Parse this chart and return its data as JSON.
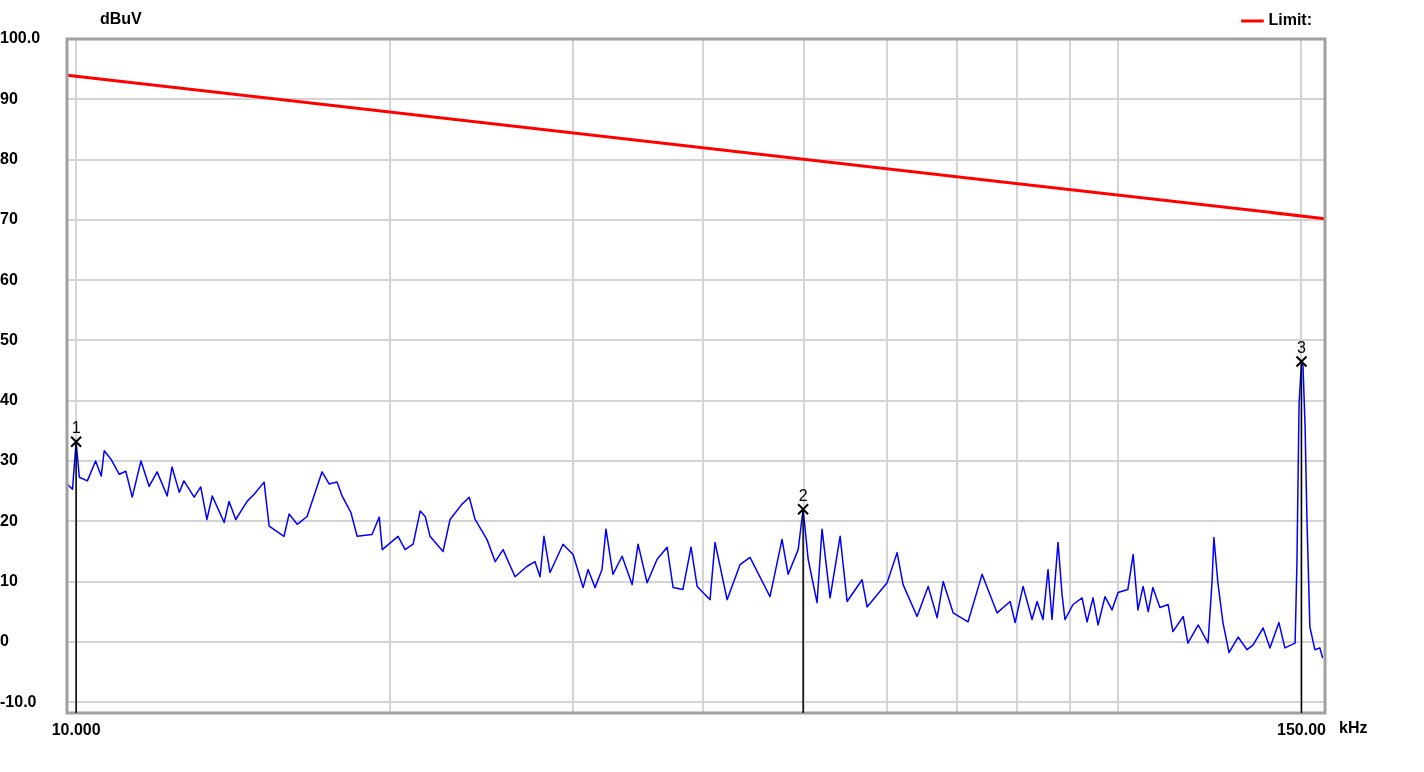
{
  "chart_data": {
    "type": "line",
    "xlabel": "kHz",
    "ylabel": "dBuV",
    "log": "x",
    "grid": true,
    "legend": "top right",
    "marker": "none",
    "line_style": "solid",
    "xlim": [
      9.8,
      158
    ],
    "xticks": [
      {
        "value": 10,
        "label": "10.000"
      },
      {
        "value": 20,
        "label": null
      },
      {
        "value": 30,
        "label": null
      },
      {
        "value": 40,
        "label": null
      },
      {
        "value": 50,
        "label": null
      },
      {
        "value": 60,
        "label": null
      },
      {
        "value": 70,
        "label": null
      },
      {
        "value": 80,
        "label": null
      },
      {
        "value": 90,
        "label": null
      },
      {
        "value": 100,
        "label": null
      },
      {
        "value": 150,
        "label": "150.00"
      }
    ],
    "ylim": [
      -11.8,
      100
    ],
    "yticks": [
      {
        "value": -10,
        "label": "-10.0"
      },
      0,
      10,
      20,
      30,
      40,
      50,
      60,
      70,
      80,
      90,
      {
        "value": 100,
        "label": "100.0"
      }
    ],
    "series": [
      {
        "name": "Limit:",
        "color": "#ff0000",
        "x": [
          9.8,
          158
        ],
        "values": [
          94.0,
          70.2
        ]
      },
      {
        "color": "#0000ff",
        "x": [
          9.8,
          9.92,
          10.0,
          10.07,
          10.25,
          10.44,
          10.57,
          10.64,
          10.8,
          11.0,
          11.16,
          11.32,
          11.54,
          11.75,
          11.96,
          12.23,
          12.36,
          12.56,
          12.69,
          12.98,
          13.17,
          13.35,
          13.51,
          13.87,
          14.02,
          14.23,
          14.59,
          14.82,
          15.15,
          15.32,
          15.83,
          16.01,
          16.3,
          16.66,
          17.22,
          17.49,
          17.8,
          18.0,
          18.35,
          18.61,
          19.23,
          19.54,
          19.67,
          20.37,
          20.69,
          21.06,
          21.39,
          21.63,
          21.86,
          22.5,
          22.85,
          23.45,
          23.84,
          24.15,
          24.79,
          25.25,
          25.69,
          26.38,
          27.07,
          27.57,
          27.88,
          28.12,
          28.5,
          29.33,
          29.99,
          30.66,
          31.0,
          31.48,
          31.97,
          32.25,
          32.75,
          33.42,
          34.17,
          34.62,
          35.32,
          36.11,
          36.92,
          37.41,
          38.23,
          38.92,
          39.45,
          40.59,
          41.04,
          42.15,
          43.37,
          44.34,
          46.34,
          47.59,
          48.24,
          49.32,
          49.86,
          50.42,
          51.42,
          51.99,
          52.92,
          54.11,
          54.95,
          56.8,
          57.43,
          60.03,
          61.37,
          62.19,
          64.14,
          65.73,
          67.05,
          67.95,
          69.47,
          71.78,
          74.05,
          76.55,
          78.79,
          79.66,
          81.07,
          82.7,
          83.62,
          84.72,
          85.67,
          86.43,
          87.58,
          88.37,
          88.94,
          90.54,
          92.36,
          93.38,
          94.62,
          95.68,
          97.16,
          98.68,
          100.0,
          102.2,
          103.4,
          104.5,
          105.7,
          106.9,
          108.0,
          109.7,
          111.7,
          112.9,
          115.5,
          116.7,
          119.4,
          122.0,
          123.1,
          123.6,
          124.7,
          126.1,
          127.8,
          130.4,
          133.0,
          134.8,
          137.8,
          139.9,
          142.7,
          144.6,
          147.9,
          148.5,
          149.2,
          150.0,
          150.5,
          151.2,
          151.8,
          152.8,
          154.5,
          156.2,
          157.2
        ],
        "values": [
          26.2,
          25.3,
          33.2,
          27.3,
          26.7,
          30,
          27.5,
          31.7,
          30.3,
          27.8,
          28.3,
          24,
          30,
          25.8,
          28.2,
          24.2,
          29,
          24.8,
          26.7,
          24,
          25.7,
          20.3,
          24.2,
          19.8,
          23.3,
          20.3,
          23.3,
          24.5,
          26.5,
          19.2,
          17.5,
          21.2,
          19.5,
          20.8,
          28.2,
          26.2,
          26.5,
          24.2,
          21.5,
          17.5,
          17.8,
          20.7,
          15.3,
          17.5,
          15.3,
          16.2,
          21.7,
          20.8,
          17.5,
          15,
          20.3,
          22.8,
          24,
          20.3,
          17,
          13.3,
          15.3,
          10.8,
          12.5,
          13.3,
          10.8,
          17.5,
          11.5,
          16.2,
          14.5,
          9,
          12,
          9,
          12,
          18.7,
          11.2,
          14.2,
          9.5,
          16.2,
          9.8,
          13.7,
          15.7,
          9,
          8.7,
          15.7,
          9.2,
          7,
          16.5,
          7,
          12.8,
          14,
          7.5,
          17,
          11.2,
          15.3,
          22,
          13.7,
          6.5,
          18.7,
          7.3,
          17.5,
          6.7,
          10.3,
          5.8,
          9.8,
          14.8,
          9.5,
          4.2,
          9.2,
          4,
          10,
          4.8,
          3.3,
          11.2,
          4.8,
          6.7,
          3.2,
          9.2,
          3.7,
          6.7,
          3.7,
          12,
          3.7,
          16.5,
          7.8,
          3.7,
          6.2,
          7.3,
          3.3,
          7.3,
          2.8,
          7.5,
          5.3,
          8.2,
          8.7,
          14.5,
          5.3,
          9.2,
          5,
          9,
          5.7,
          6.2,
          1.7,
          4.2,
          -0.2,
          2.8,
          -0.2,
          10,
          17.3,
          9.8,
          3.2,
          -1.8,
          0.8,
          -1.3,
          -0.5,
          2.3,
          -1,
          3.2,
          -1,
          -0.2,
          13.2,
          39.5,
          46.5,
          45.8,
          35.7,
          20.7,
          2.5,
          -1.3,
          -1,
          -2.7
        ]
      }
    ],
    "annotations": [
      {
        "text": "1",
        "x": 10.0,
        "y": 33.2
      },
      {
        "text": "2",
        "x": 49.86,
        "y": 22
      },
      {
        "text": "3",
        "x": 150.0,
        "y": 46.5
      }
    ]
  }
}
